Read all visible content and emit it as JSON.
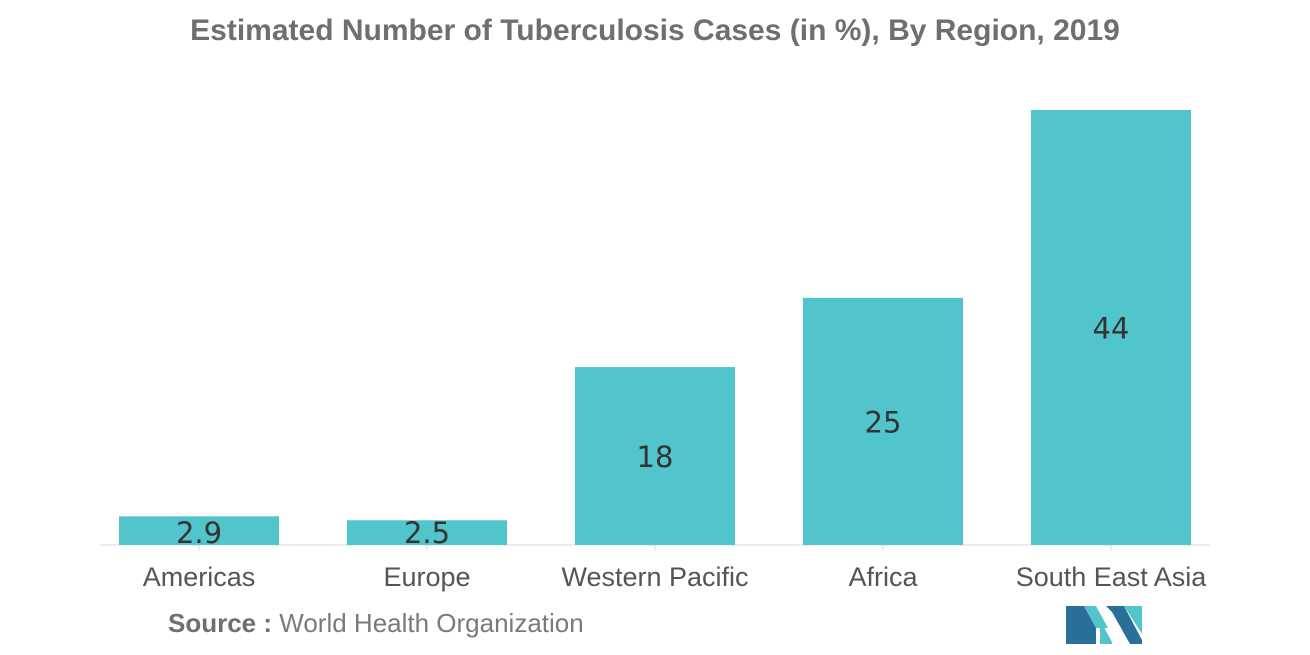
{
  "title": "Estimated Number of Tuberculosis Cases (in %), By Region, 2019",
  "source": {
    "label": "Source :",
    "text": "World Health Organization"
  },
  "colors": {
    "bar": "#52c4cb",
    "text": "#333333",
    "axis_text": "#555555",
    "logo_dark": "#2a6f97",
    "logo_light": "#52c4cb"
  },
  "chart_data": {
    "type": "bar",
    "title": "Estimated Number of Tuberculosis Cases (in %), By Region, 2019",
    "categories": [
      "Americas",
      "Europe",
      "Western Pacific",
      "Africa",
      "South East Asia"
    ],
    "values": [
      2.9,
      2.5,
      18,
      25,
      44
    ],
    "data_labels": [
      "2.9",
      "2.5",
      "18",
      "25",
      "44"
    ],
    "xlabel": "",
    "ylabel": "",
    "ylim": [
      0,
      44
    ],
    "grid": false,
    "legend": "none"
  },
  "logo": {
    "icon": "mordor-logo-icon"
  }
}
